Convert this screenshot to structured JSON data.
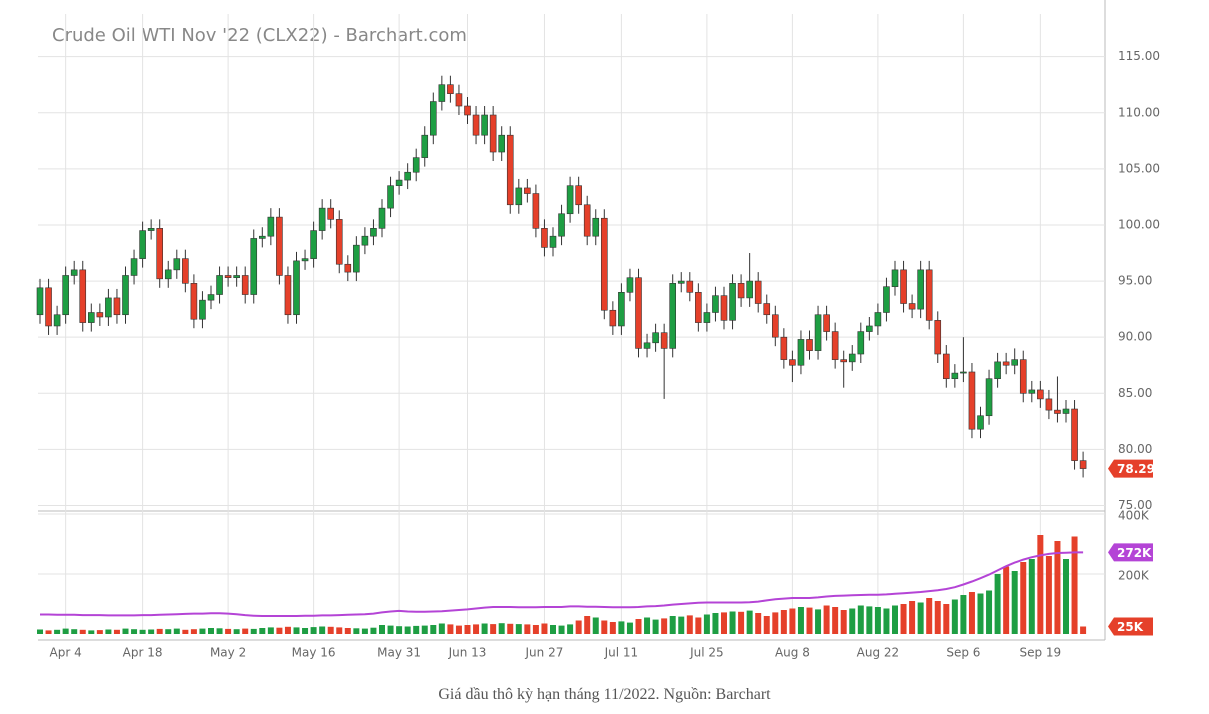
{
  "chart_data": [
    {
      "type": "candlestick",
      "title": "Crude Oil WTI Nov '22 (CLX22) - Barchart.com",
      "categories": [
        null,
        null,
        null,
        "Apr 4",
        null,
        null,
        null,
        null,
        null,
        null,
        null,
        null,
        "Apr 18",
        null,
        null,
        null,
        null,
        null,
        null,
        null,
        null,
        null,
        "May 2",
        null,
        null,
        null,
        null,
        null,
        null,
        null,
        null,
        null,
        "May 16",
        null,
        null,
        null,
        null,
        null,
        null,
        null,
        null,
        null,
        "May 31",
        null,
        null,
        null,
        null,
        null,
        null,
        null,
        "Jun 13",
        null,
        null,
        null,
        null,
        null,
        null,
        null,
        null,
        "Jun 27",
        null,
        null,
        null,
        null,
        null,
        null,
        null,
        null,
        "Jul 11",
        null,
        null,
        null,
        null,
        null,
        null,
        null,
        null,
        null,
        "Jul 25",
        null,
        null,
        null,
        null,
        null,
        null,
        null,
        null,
        null,
        "Aug 8",
        null,
        null,
        null,
        null,
        null,
        null,
        null,
        null,
        null,
        "Aug 22",
        null,
        null,
        null,
        null,
        null,
        null,
        null,
        null,
        null,
        "Sep 6",
        null,
        null,
        null,
        null,
        null,
        null,
        null,
        null,
        "Sep 19",
        null,
        null,
        null,
        null,
        null
      ],
      "open": [
        92.0,
        94.4,
        91.0,
        92.0,
        95.5,
        96.0,
        91.3,
        92.2,
        91.8,
        93.5,
        92.0,
        95.5,
        97.0,
        99.5,
        99.7,
        95.2,
        96.0,
        97.0,
        94.8,
        91.6,
        93.3,
        93.8,
        95.5,
        95.3,
        95.5,
        93.8,
        98.8,
        99.0,
        100.7,
        95.5,
        92.0,
        96.8,
        97.0,
        99.5,
        101.5,
        100.5,
        96.5,
        95.8,
        98.2,
        99.0,
        99.7,
        101.5,
        103.5,
        104.0,
        104.7,
        106.0,
        108.0,
        111.0,
        112.5,
        111.7,
        110.6,
        109.8,
        108.0,
        109.8,
        106.5,
        108.0,
        101.8,
        103.3,
        102.8,
        99.7,
        98.0,
        99.0,
        101.0,
        103.5,
        101.8,
        99.0,
        100.6,
        92.4,
        91.0,
        94.0,
        95.3,
        89.0,
        89.5,
        90.4,
        89.0,
        94.8,
        95.0,
        94.0,
        91.3,
        92.2,
        93.7,
        91.5,
        94.8,
        93.5,
        95.0,
        93.0,
        92.0,
        90.0,
        88.0,
        87.5,
        89.8,
        88.8,
        92.0,
        90.5,
        88.0,
        87.8,
        88.5,
        90.5,
        91.0,
        92.2,
        94.5,
        96.0,
        93.0,
        92.5,
        96.0,
        91.5,
        88.5,
        86.3,
        86.8,
        86.9,
        81.8,
        83.0,
        86.3,
        87.8,
        87.5,
        88.0,
        85.0,
        85.3,
        84.5,
        83.5,
        83.2,
        83.6,
        79.0
      ],
      "high": [
        95.2,
        95.2,
        92.8,
        96.3,
        96.8,
        96.8,
        93.0,
        93.0,
        94.3,
        94.3,
        96.3,
        97.8,
        100.3,
        100.5,
        100.5,
        96.8,
        97.8,
        97.8,
        95.6,
        94.1,
        94.6,
        96.3,
        96.3,
        96.3,
        96.3,
        99.6,
        99.8,
        101.5,
        101.5,
        96.3,
        97.6,
        97.8,
        100.3,
        102.3,
        102.3,
        101.3,
        97.3,
        99.0,
        99.8,
        100.5,
        102.3,
        104.3,
        104.8,
        105.5,
        106.8,
        108.8,
        111.8,
        113.3,
        113.3,
        112.5,
        111.4,
        110.6,
        110.6,
        110.6,
        108.8,
        108.8,
        104.1,
        104.1,
        103.6,
        100.5,
        99.8,
        101.8,
        104.3,
        104.3,
        102.6,
        101.4,
        101.4,
        93.2,
        94.8,
        96.1,
        96.1,
        90.3,
        91.2,
        91.2,
        95.6,
        95.8,
        95.8,
        94.8,
        93.0,
        94.5,
        94.5,
        95.6,
        95.6,
        97.5,
        95.8,
        93.8,
        92.8,
        90.8,
        88.8,
        90.6,
        90.6,
        92.8,
        92.8,
        91.3,
        88.8,
        89.3,
        91.3,
        91.8,
        93.0,
        95.3,
        96.8,
        96.8,
        93.8,
        96.8,
        96.8,
        92.3,
        89.3,
        87.6,
        90.0,
        87.7,
        83.8,
        87.1,
        88.6,
        88.6,
        89.0,
        88.8,
        86.1,
        86.1,
        85.3,
        86.5,
        84.4,
        84.4,
        79.8
      ],
      "low": [
        91.2,
        90.2,
        90.2,
        91.2,
        94.7,
        90.5,
        90.5,
        91.0,
        91.0,
        91.2,
        91.2,
        94.7,
        96.2,
        98.7,
        94.4,
        94.4,
        95.2,
        94.0,
        90.8,
        90.8,
        92.5,
        93.0,
        94.5,
        94.5,
        93.0,
        93.0,
        98.0,
        98.2,
        94.7,
        91.2,
        91.2,
        96.0,
        96.2,
        98.7,
        99.7,
        95.7,
        95.0,
        95.0,
        97.4,
        98.2,
        98.9,
        100.7,
        102.7,
        103.2,
        103.9,
        105.2,
        107.2,
        110.2,
        110.9,
        109.8,
        109.0,
        107.2,
        107.2,
        105.7,
        105.7,
        101.0,
        101.0,
        102.0,
        98.9,
        97.2,
        97.2,
        98.2,
        100.2,
        101.0,
        98.2,
        98.2,
        91.6,
        90.2,
        90.2,
        93.2,
        88.2,
        88.2,
        88.7,
        84.5,
        88.2,
        94.0,
        93.2,
        90.5,
        90.5,
        91.4,
        90.7,
        90.7,
        92.7,
        92.7,
        92.2,
        91.2,
        89.2,
        87.2,
        86.0,
        86.7,
        88.0,
        88.0,
        89.7,
        87.2,
        85.5,
        87.0,
        87.7,
        89.7,
        90.2,
        91.4,
        93.7,
        92.2,
        91.7,
        91.7,
        90.7,
        87.7,
        85.5,
        85.5,
        86.0,
        81.0,
        81.0,
        82.2,
        85.5,
        86.7,
        86.7,
        84.2,
        84.2,
        83.7,
        82.7,
        82.4,
        82.4,
        78.2,
        77.5
      ],
      "close": [
        94.4,
        91.0,
        92.0,
        95.5,
        96.0,
        91.3,
        92.2,
        91.8,
        93.5,
        92.0,
        95.5,
        97.0,
        99.5,
        99.7,
        95.2,
        96.0,
        97.0,
        94.8,
        91.6,
        93.3,
        93.8,
        95.5,
        95.3,
        95.5,
        93.8,
        98.8,
        99.0,
        100.7,
        95.5,
        92.0,
        96.8,
        97.0,
        99.5,
        101.5,
        100.5,
        96.5,
        95.8,
        98.2,
        99.0,
        99.7,
        101.5,
        103.5,
        104.0,
        104.7,
        106.0,
        108.0,
        111.0,
        112.5,
        111.7,
        110.6,
        109.8,
        108.0,
        109.8,
        106.5,
        108.0,
        101.8,
        103.3,
        102.8,
        99.7,
        98.0,
        99.0,
        101.0,
        103.5,
        101.8,
        99.0,
        100.6,
        92.4,
        91.0,
        94.0,
        95.3,
        89.0,
        89.5,
        90.4,
        89.0,
        94.8,
        95.0,
        94.0,
        91.3,
        92.2,
        93.7,
        91.5,
        94.8,
        93.5,
        95.0,
        93.0,
        92.0,
        90.0,
        88.0,
        87.5,
        89.8,
        88.8,
        92.0,
        90.5,
        88.0,
        87.8,
        88.5,
        90.5,
        91.0,
        92.2,
        94.5,
        96.0,
        93.0,
        92.5,
        96.0,
        91.5,
        88.5,
        86.3,
        86.8,
        86.9,
        81.8,
        83.0,
        86.3,
        87.8,
        87.5,
        88.0,
        85.0,
        85.3,
        84.5,
        83.5,
        83.2,
        83.6,
        79.0,
        78.29
      ],
      "colors": {
        "up": "#1e9e43",
        "down": "#e5402a"
      },
      "ylim": [
        74.6,
        118.8
      ],
      "yticks": [
        {
          "value": 75,
          "label": "75.00"
        },
        {
          "value": 80,
          "label": "80.00"
        },
        {
          "value": 85,
          "label": "85.00"
        },
        {
          "value": 90,
          "label": "90.00"
        },
        {
          "value": 95,
          "label": "95.00"
        },
        {
          "value": 100,
          "label": "100.00"
        },
        {
          "value": 105,
          "label": "105.00"
        },
        {
          "value": 110,
          "label": "110.00"
        },
        {
          "value": 115,
          "label": "115.00"
        }
      ],
      "grid": true
    },
    {
      "type": "bar",
      "values": [
        15000,
        12000,
        14000,
        18000,
        16000,
        14000,
        12000,
        13000,
        15000,
        14000,
        18000,
        16000,
        14000,
        15000,
        17000,
        16000,
        18000,
        14000,
        16000,
        18000,
        20000,
        19000,
        17000,
        16000,
        18000,
        17000,
        20000,
        22000,
        21000,
        24000,
        22000,
        20000,
        23000,
        25000,
        24000,
        22000,
        20000,
        19000,
        18000,
        21000,
        30000,
        28000,
        26000,
        25000,
        27000,
        28000,
        30000,
        35000,
        32000,
        28000,
        30000,
        32000,
        35000,
        33000,
        36000,
        34000,
        33000,
        32000,
        30000,
        35000,
        30000,
        28000,
        32000,
        45000,
        60000,
        55000,
        45000,
        40000,
        42000,
        38000,
        50000,
        55000,
        48000,
        52000,
        60000,
        58000,
        62000,
        55000,
        65000,
        70000,
        72000,
        75000,
        74000,
        78000,
        70000,
        60000,
        72000,
        80000,
        85000,
        90000,
        88000,
        82000,
        95000,
        90000,
        80000,
        85000,
        95000,
        92000,
        90000,
        85000,
        95000,
        100000,
        110000,
        105000,
        120000,
        110000,
        100000,
        115000,
        130000,
        140000,
        135000,
        145000,
        200000,
        225000,
        210000,
        240000,
        250000,
        330000,
        260000,
        310000,
        250000,
        325000,
        25000
      ],
      "average": [
        65000,
        65000,
        64000,
        64000,
        64000,
        63000,
        63000,
        63000,
        62000,
        62000,
        62000,
        62000,
        63000,
        63000,
        64000,
        65000,
        66000,
        67000,
        68000,
        68000,
        69000,
        69000,
        68000,
        66000,
        63000,
        61000,
        60000,
        60000,
        60000,
        60000,
        60000,
        61000,
        61000,
        62000,
        62000,
        63000,
        64000,
        65000,
        66000,
        68000,
        72000,
        75000,
        77000,
        75000,
        74000,
        74000,
        75000,
        76000,
        78000,
        80000,
        82000,
        85000,
        88000,
        90000,
        90000,
        90000,
        89000,
        89000,
        89000,
        90000,
        90000,
        90000,
        92000,
        92000,
        91000,
        91000,
        90000,
        89000,
        89000,
        89000,
        90000,
        92000,
        93000,
        95000,
        98000,
        100000,
        102000,
        104000,
        105000,
        105000,
        105000,
        105000,
        105000,
        106000,
        108000,
        112000,
        116000,
        118000,
        120000,
        120000,
        120000,
        122000,
        125000,
        127000,
        128000,
        129000,
        130000,
        131000,
        131000,
        132000,
        134000,
        136000,
        138000,
        140000,
        143000,
        146000,
        150000,
        156000,
        165000,
        175000,
        186000,
        198000,
        212000,
        226000,
        238000,
        248000,
        256000,
        262000,
        267000,
        270000,
        271000,
        272000,
        272000
      ],
      "last_value_label": "25K",
      "last_average_label": "272K",
      "average_color": "#b444d6",
      "ylim": [
        0,
        400000
      ],
      "yticks": [
        {
          "value": 200000,
          "label": "200K"
        },
        {
          "value": 400000,
          "label": "400K"
        }
      ]
    }
  ],
  "caption": "Giá dầu thô kỳ hạn tháng 11/2022. Nguồn: Barchart"
}
